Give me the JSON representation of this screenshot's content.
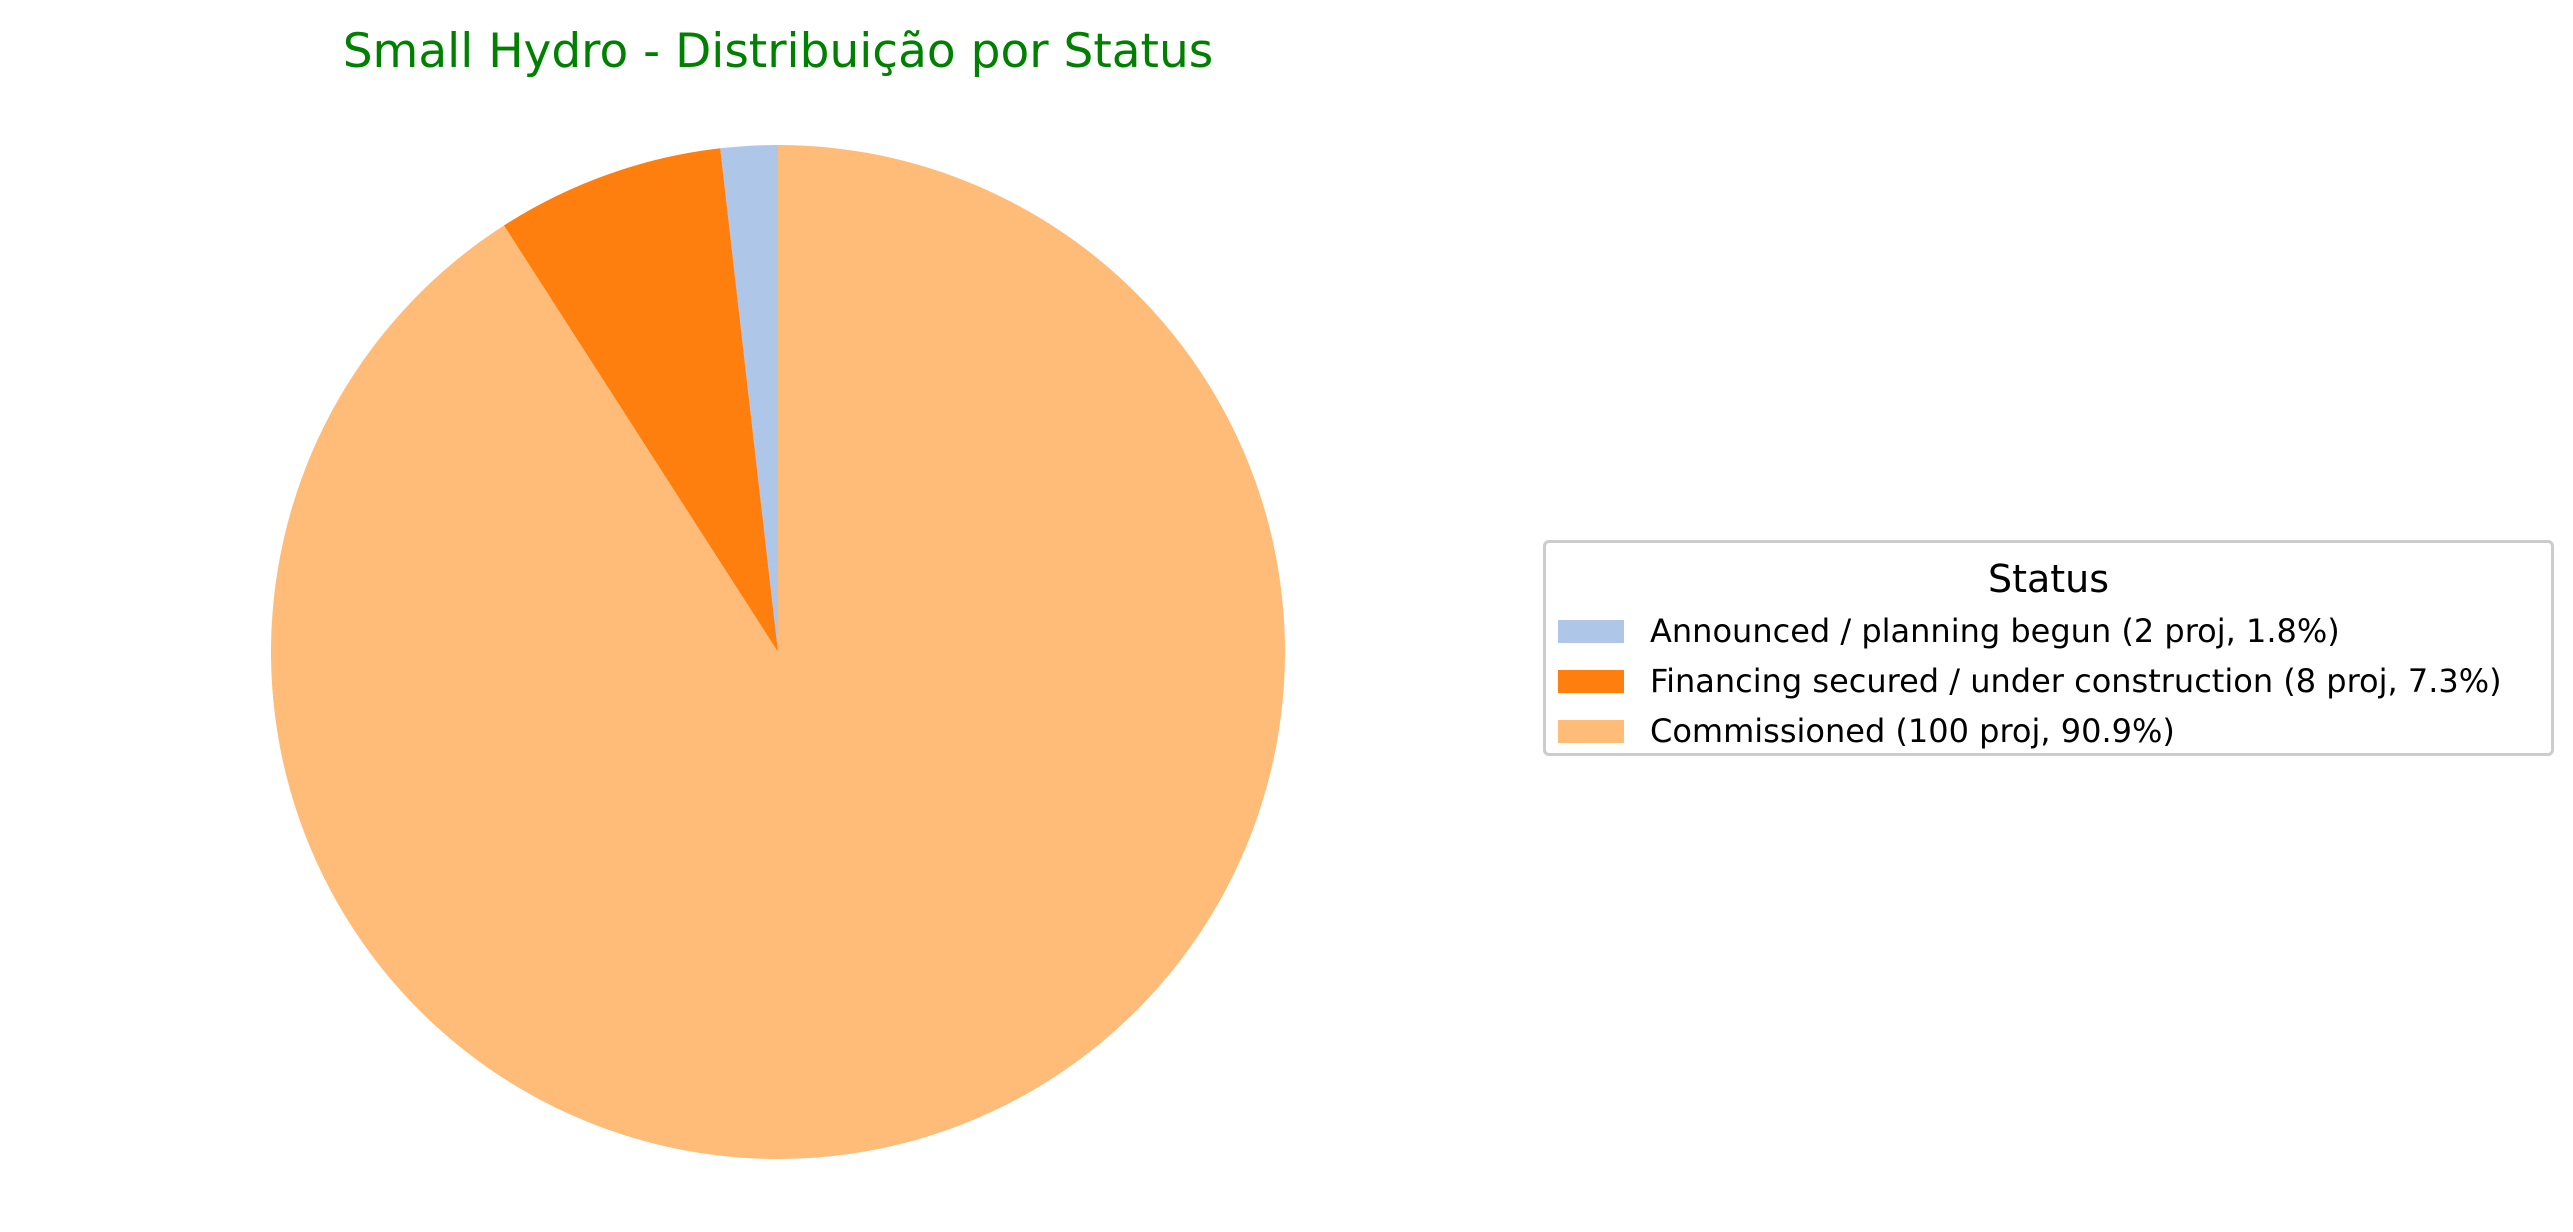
{
  "chart_data": {
    "type": "pie",
    "title": "Small Hydro - Distribuição por Status",
    "title_color": "#008000",
    "start_angle": "top, counterclockwise",
    "slices": [
      {
        "label": "Announced / planning begun (2 proj, 1.8%)",
        "value": 2,
        "percent": 1.8,
        "color": "#aec7e8"
      },
      {
        "label": "Financing secured / under construction (8 proj, 7.3%)",
        "value": 8,
        "percent": 7.3,
        "color": "#ff7f0e"
      },
      {
        "label": "Commissioned (100 proj, 90.9%)",
        "value": 100,
        "percent": 90.9,
        "color": "#ffbb78"
      }
    ],
    "legend": {
      "title": "Status",
      "placement": "right"
    }
  }
}
